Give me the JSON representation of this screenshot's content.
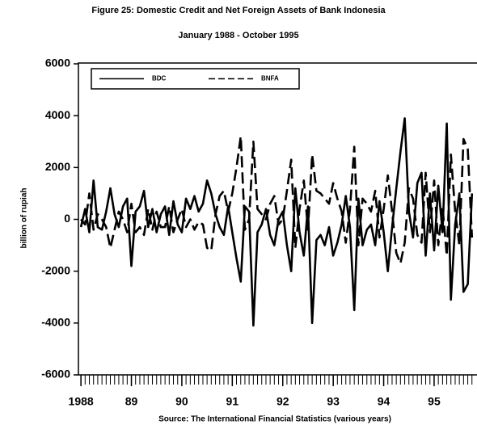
{
  "chart_data": {
    "type": "line",
    "title": "Figure 25: Domestic Credit and Net Foreign Assets of Bank Indonesia",
    "subtitle": "January 1988 - October 1995",
    "y_label": "billion of rupiah",
    "source": "Source: The International Financial Statistics (various years)",
    "legend": "top-left",
    "x": [
      1988,
      1988.083,
      1988.167,
      1988.25,
      1988.333,
      1988.417,
      1988.5,
      1988.583,
      1988.667,
      1988.75,
      1988.833,
      1988.917,
      1989,
      1989.083,
      1989.167,
      1989.25,
      1989.333,
      1989.417,
      1989.5,
      1989.583,
      1989.667,
      1989.75,
      1989.833,
      1989.917,
      1990,
      1990.083,
      1990.167,
      1990.25,
      1990.333,
      1990.417,
      1990.5,
      1990.583,
      1990.667,
      1990.75,
      1990.833,
      1990.917,
      1991,
      1991.083,
      1991.167,
      1991.25,
      1991.333,
      1991.417,
      1991.5,
      1991.583,
      1991.667,
      1991.75,
      1991.833,
      1991.917,
      1992,
      1992.083,
      1992.167,
      1992.25,
      1992.333,
      1992.417,
      1992.5,
      1992.583,
      1992.667,
      1992.75,
      1992.833,
      1992.917,
      1993,
      1993.083,
      1993.167,
      1993.25,
      1993.333,
      1993.417,
      1993.5,
      1993.583,
      1993.667,
      1993.75,
      1993.833,
      1993.917,
      1994,
      1994.083,
      1994.167,
      1994.25,
      1994.333,
      1994.417,
      1994.5,
      1994.583,
      1994.667,
      1994.75,
      1994.833,
      1994.917,
      1995,
      1995.083,
      1995.167,
      1995.25,
      1995.333,
      1995.417,
      1995.5,
      1995.583,
      1995.667,
      1995.75
    ],
    "series": [
      {
        "name": "BDC",
        "color": "#000000",
        "style": "solid",
        "values": [
          -300,
          400,
          -500,
          1500,
          -300,
          -400,
          300,
          1200,
          200,
          -300,
          500,
          800,
          -1800,
          300,
          500,
          1100,
          -300,
          400,
          -500,
          200,
          500,
          -600,
          700,
          -200,
          -500,
          800,
          400,
          900,
          300,
          600,
          1500,
          1000,
          200,
          -300,
          -600,
          500,
          -500,
          -1500,
          -2400,
          500,
          300,
          -4100,
          -500,
          -200,
          400,
          -600,
          -1000,
          0,
          300,
          -1000,
          -2000,
          1200,
          -500,
          -1400,
          500,
          -4000,
          -800,
          -600,
          -1000,
          -300,
          -1400,
          -900,
          -200,
          900,
          -300,
          -3500,
          800,
          -1000,
          -400,
          -200,
          -1000,
          700,
          -500,
          -2000,
          -300,
          1200,
          2600,
          3900,
          300,
          -700,
          1400,
          1800,
          -1400,
          1000,
          -1200,
          1300,
          -500,
          3700,
          -3100,
          -200,
          1000,
          -2800,
          -2500,
          1000
        ]
      },
      {
        "name": "BNFA",
        "color": "#000000",
        "style": "dashed",
        "values": [
          0,
          -200,
          1000,
          -400,
          200,
          0,
          -300,
          -1100,
          -400,
          300,
          0,
          -500,
          600,
          -500,
          -300,
          -600,
          400,
          -400,
          300,
          -300,
          -300,
          500,
          -500,
          0,
          400,
          -300,
          0,
          -400,
          -100,
          -200,
          -1100,
          -1200,
          200,
          900,
          1100,
          300,
          1000,
          2000,
          3200,
          -400,
          0,
          3000,
          400,
          200,
          0,
          600,
          900,
          -200,
          0,
          1100,
          2300,
          -1100,
          400,
          1500,
          -400,
          2500,
          1100,
          1000,
          800,
          600,
          1400,
          800,
          300,
          -900,
          400,
          2800,
          -1000,
          800,
          600,
          300,
          1100,
          -700,
          400,
          1700,
          300,
          -1300,
          -1700,
          -900,
          1200,
          800,
          -600,
          -900,
          1800,
          -500,
          1500,
          -1000,
          500,
          -1400,
          2500,
          300,
          -1000,
          3100,
          2700,
          -700
        ]
      }
    ],
    "xlim": [
      1987.95,
      1995.85
    ],
    "xticks": [
      {
        "value": 1988,
        "label": "1988"
      },
      {
        "value": 1989,
        "label": "89"
      },
      {
        "value": 1990,
        "label": "90"
      },
      {
        "value": 1991,
        "label": "91"
      },
      {
        "value": 1992,
        "label": "92"
      },
      {
        "value": 1993,
        "label": "93"
      },
      {
        "value": 1994,
        "label": "94"
      },
      {
        "value": 1995,
        "label": "95"
      }
    ],
    "ylim": [
      -6000,
      6000
    ],
    "yticks": [
      -6000,
      -4000,
      -2000,
      0,
      2000,
      4000,
      6000
    ]
  }
}
